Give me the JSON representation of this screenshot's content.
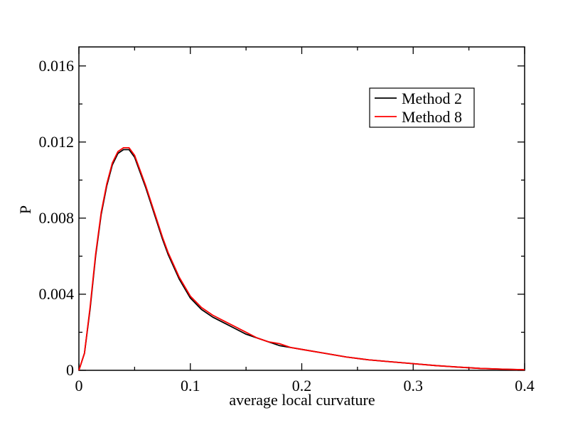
{
  "chart_data": {
    "type": "line",
    "title": "",
    "xlabel": "average local curvature",
    "ylabel": "P",
    "xlim": [
      0,
      0.4
    ],
    "ylim": [
      0,
      0.017
    ],
    "x_ticks": [
      0,
      0.1,
      0.2,
      0.3,
      0.4
    ],
    "x_tick_labels": [
      "0",
      "0.1",
      "0.2",
      "0.3",
      "0.4"
    ],
    "y_ticks": [
      0,
      0.004,
      0.008,
      0.012,
      0.016
    ],
    "y_tick_labels": [
      "0",
      "0.004",
      "0.008",
      "0.012",
      "0.016"
    ],
    "grid": false,
    "legend": {
      "placement": "top-right"
    },
    "series": [
      {
        "name": "Method 2",
        "color": "#000000",
        "x": [
          0,
          0.005,
          0.01,
          0.015,
          0.02,
          0.025,
          0.03,
          0.035,
          0.04,
          0.045,
          0.05,
          0.055,
          0.06,
          0.065,
          0.07,
          0.075,
          0.08,
          0.09,
          0.1,
          0.11,
          0.12,
          0.13,
          0.14,
          0.15,
          0.16,
          0.17,
          0.18,
          0.19,
          0.2,
          0.22,
          0.24,
          0.26,
          0.28,
          0.3,
          0.32,
          0.34,
          0.36,
          0.38,
          0.4
        ],
        "y": [
          0,
          0.0009,
          0.0032,
          0.006,
          0.0082,
          0.0097,
          0.0108,
          0.0114,
          0.0116,
          0.0116,
          0.0112,
          0.0104,
          0.0096,
          0.0087,
          0.0078,
          0.0069,
          0.0061,
          0.0048,
          0.0038,
          0.0032,
          0.0028,
          0.0025,
          0.0022,
          0.0019,
          0.0017,
          0.0015,
          0.0013,
          0.0012,
          0.0011,
          0.0009,
          0.0007,
          0.00055,
          0.00045,
          0.00035,
          0.00025,
          0.00017,
          0.0001,
          6e-05,
          3e-05
        ]
      },
      {
        "name": "Method 8",
        "color": "#ff0000",
        "x": [
          0,
          0.005,
          0.01,
          0.015,
          0.02,
          0.025,
          0.03,
          0.035,
          0.04,
          0.045,
          0.05,
          0.055,
          0.06,
          0.065,
          0.07,
          0.075,
          0.08,
          0.09,
          0.1,
          0.11,
          0.12,
          0.13,
          0.14,
          0.15,
          0.16,
          0.17,
          0.18,
          0.19,
          0.2,
          0.22,
          0.24,
          0.26,
          0.28,
          0.3,
          0.32,
          0.34,
          0.36,
          0.38,
          0.4
        ],
        "y": [
          0,
          0.0009,
          0.0033,
          0.0061,
          0.0083,
          0.0098,
          0.0109,
          0.0115,
          0.0117,
          0.0117,
          0.0113,
          0.0105,
          0.0097,
          0.0088,
          0.0079,
          0.007,
          0.0062,
          0.0049,
          0.0039,
          0.0033,
          0.0029,
          0.0026,
          0.0023,
          0.002,
          0.0017,
          0.0015,
          0.0014,
          0.0012,
          0.0011,
          0.0009,
          0.0007,
          0.00055,
          0.00045,
          0.00035,
          0.00025,
          0.00017,
          0.0001,
          6e-05,
          3e-05
        ]
      }
    ]
  }
}
